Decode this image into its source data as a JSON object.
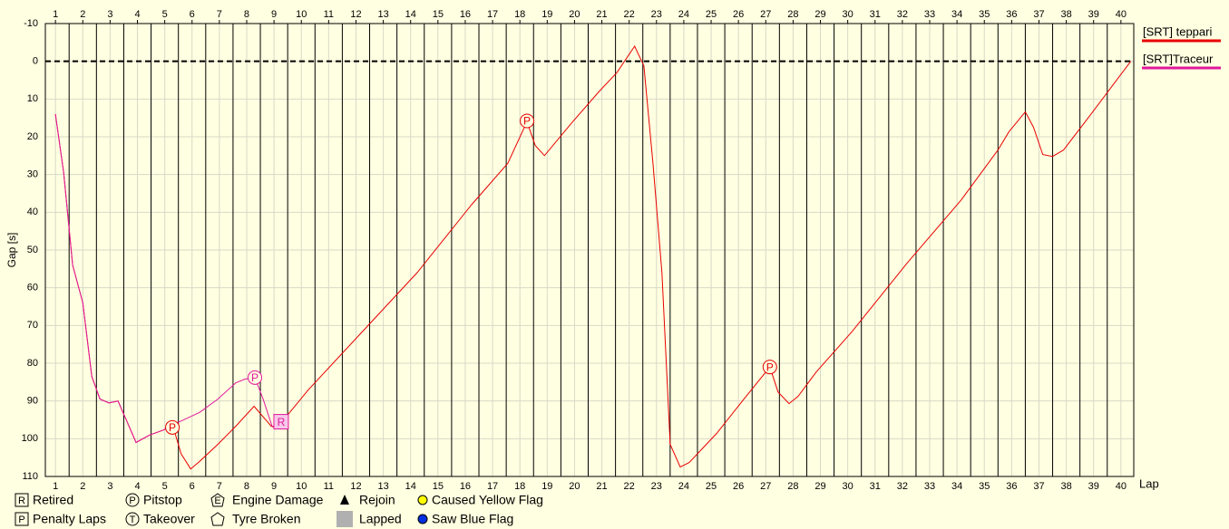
{
  "chart_data": {
    "type": "line",
    "y_label": "Gap [s]",
    "x_label": "Lap",
    "xlim": [
      0.63,
      40.47
    ],
    "ylim": [
      110,
      -10
    ],
    "xticks": [
      1,
      2,
      3,
      4,
      5,
      6,
      7,
      8,
      9,
      10,
      11,
      12,
      13,
      14,
      15,
      16,
      17,
      18,
      19,
      20,
      21,
      22,
      23,
      24,
      25,
      26,
      27,
      28,
      29,
      30,
      31,
      32,
      33,
      34,
      35,
      36,
      37,
      38,
      39,
      40
    ],
    "yticks": [
      -10,
      0,
      10,
      20,
      30,
      40,
      50,
      60,
      70,
      80,
      90,
      100,
      110
    ],
    "grid": true,
    "hline": 0,
    "series": [
      {
        "name": "[SRT] teppari",
        "color": "#e80000",
        "x": [
          1,
          1.3,
          1.63,
          2,
          2.33,
          2.63,
          2.96,
          3.29,
          3.65,
          3.95,
          4.45,
          4.95,
          5.28,
          5.6,
          5.95,
          6.28,
          6.94,
          7.6,
          8.27,
          8.9,
          9.1,
          10.26,
          12.25,
          14.24,
          16.23,
          17.56,
          18.26,
          18.56,
          18.9,
          19.9,
          20.9,
          21.55,
          22.2,
          22.54,
          22.87,
          23.2,
          23.5,
          23.87,
          24.2,
          25.2,
          26.2,
          27.15,
          27.45,
          27.85,
          28.18,
          28.85,
          30.17,
          32.17,
          34.16,
          35.5,
          35.9,
          36.5,
          36.8,
          37.14,
          37.5,
          37.9,
          38.8,
          40.36
        ],
        "values": [
          14,
          29.5,
          54,
          64,
          83.5,
          89.5,
          90.5,
          90,
          96,
          101,
          99,
          97.7,
          96.2,
          104,
          108,
          106,
          101.5,
          96.7,
          91.4,
          96.7,
          97.2,
          87,
          71.5,
          56,
          38,
          27,
          16,
          22.3,
          25,
          16.3,
          8,
          3,
          -4,
          1.2,
          27,
          56,
          101.5,
          107.5,
          106.3,
          98.6,
          89.5,
          81,
          87.6,
          90.7,
          88.8,
          82.3,
          71.5,
          53.5,
          36.7,
          23.5,
          18.7,
          13.4,
          17.5,
          24.7,
          25.2,
          23.5,
          15,
          0
        ]
      },
      {
        "name": "[SRT]Traceur",
        "color": "#e0189c",
        "x": [
          1,
          1.3,
          1.63,
          2,
          2.33,
          2.63,
          2.96,
          3.29,
          3.65,
          3.95,
          4.45,
          4.95,
          5.28,
          5.6,
          6.28,
          6.94,
          7.6,
          7.94,
          8.3,
          8.6,
          8.93,
          9.26
        ],
        "values": [
          14,
          29.5,
          54,
          64,
          83.5,
          89.5,
          90.5,
          90,
          96,
          101,
          99,
          97.7,
          96.2,
          95.3,
          93,
          89.5,
          85.2,
          84.2,
          83.8,
          89.5,
          96.7,
          96.7
        ]
      }
    ],
    "events": [
      {
        "label": "P",
        "shape": "circle",
        "color": "#e80000",
        "x": 5.28,
        "y": 97
      },
      {
        "label": "P",
        "shape": "circle",
        "color": "#e0189c",
        "x": 8.3,
        "y": 83.8
      },
      {
        "label": "R",
        "shape": "square",
        "color": "#e0189c",
        "x": 9.26,
        "y": 95.5
      },
      {
        "label": "P",
        "shape": "circle",
        "color": "#e80000",
        "x": 18.26,
        "y": 15.8
      },
      {
        "label": "P",
        "shape": "circle",
        "color": "#e80000",
        "x": 27.15,
        "y": 81
      }
    ],
    "key": [
      {
        "symbol": "R",
        "icon": "square",
        "label": "Retired"
      },
      {
        "symbol": "P",
        "icon": "square",
        "label": "Penalty Laps"
      },
      {
        "symbol": "P",
        "icon": "circle",
        "label": "Pitstop"
      },
      {
        "symbol": "T",
        "icon": "circle",
        "label": "Takeover"
      },
      {
        "symbol": "E",
        "icon": "pentagon",
        "label": "Engine Damage"
      },
      {
        "icon": "pentagon",
        "label": "Tyre Broken"
      },
      {
        "icon": "triangle",
        "color": "#000000",
        "label": "Rejoin"
      },
      {
        "icon": "filled-square",
        "color": "#b0b0b0",
        "label": "Lapped"
      },
      {
        "icon": "dot",
        "color": "#ffff00",
        "label": "Caused Yellow Flag"
      },
      {
        "icon": "dot",
        "color": "#0030e0",
        "label": "Saw Blue Flag"
      }
    ]
  }
}
